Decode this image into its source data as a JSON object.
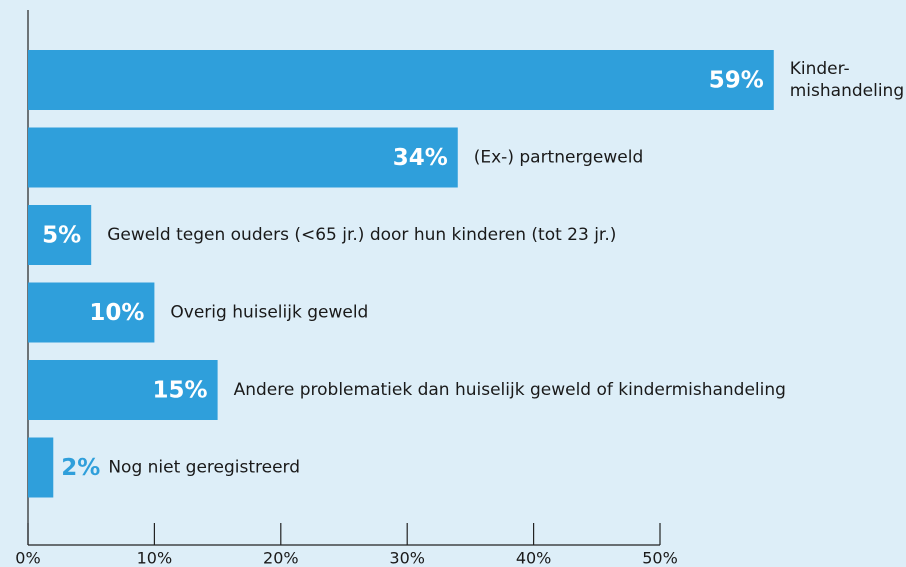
{
  "chart_data": {
    "type": "bar",
    "orientation": "horizontal",
    "categories": [
      "Kinder-mishandeling",
      "(Ex-) partnergeweld",
      "Geweld tegen ouders (<65 jr.) door hun kinderen (tot 23 jr.)",
      "Overig huiselijk geweld",
      "Andere problematiek dan huiselijk geweld of kindermishandeling",
      "Nog niet geregistreerd"
    ],
    "values": [
      59,
      34,
      5,
      10,
      15,
      2
    ],
    "value_labels": [
      "59%",
      "34%",
      "5%",
      "10%",
      "15%",
      "2%"
    ],
    "color": "#2f9fdb",
    "xlim": [
      0,
      50
    ],
    "xticks": [
      {
        "value": 0,
        "label": "0%"
      },
      {
        "value": 10,
        "label": "10%"
      },
      {
        "value": 20,
        "label": "20%"
      },
      {
        "value": 30,
        "label": "30%"
      },
      {
        "value": 40,
        "label": "40%"
      },
      {
        "value": 50,
        "label": "50%"
      }
    ]
  }
}
